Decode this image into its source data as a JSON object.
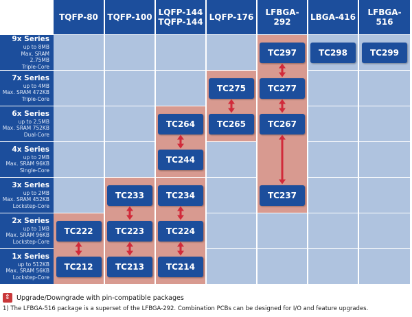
{
  "columns": [
    "TQFP-80",
    "TQFP-100",
    "LQFP-144\nTQFP-144",
    "LQFP-176",
    "LFBGA-292",
    "LBGA-416",
    "LFBGA-516"
  ],
  "rows": [
    {
      "name": "9x Series",
      "lines": [
        "up to 8MB",
        "Max. SRAM 2.75MB",
        "Triple-Core"
      ]
    },
    {
      "name": "7x Series",
      "lines": [
        "up to 4MB",
        "Max. SRAM 472KB",
        "Triple-Core"
      ]
    },
    {
      "name": "6x Series",
      "lines": [
        "up to 2.5MB",
        "Max. SRAM 752KB",
        "Dual-Core"
      ]
    },
    {
      "name": "4x Series",
      "lines": [
        "up to 2MB",
        "Max. SRAM 96KB",
        "Single-Core"
      ]
    },
    {
      "name": "3x Series",
      "lines": [
        "up to 2MB",
        "Max. SRAM 452KB",
        "Lockstep-Core"
      ]
    },
    {
      "name": "2x Series",
      "lines": [
        "up to 1MB",
        "Max. SRAM 96KB",
        "Lockstep-Core"
      ]
    },
    {
      "name": "1x Series",
      "lines": [
        "up to 512KB",
        "Max. SRAM 56KB",
        "Lockstep-Core"
      ]
    }
  ],
  "chips": [
    {
      "label": "TC297",
      "row": 0,
      "col": 4
    },
    {
      "label": "TC298",
      "row": 0,
      "col": 5
    },
    {
      "label": "TC299",
      "row": 0,
      "col": 6
    },
    {
      "label": "TC275",
      "row": 1,
      "col": 3
    },
    {
      "label": "TC277",
      "row": 1,
      "col": 4
    },
    {
      "label": "TC264",
      "row": 2,
      "col": 2
    },
    {
      "label": "TC265",
      "row": 2,
      "col": 3
    },
    {
      "label": "TC267",
      "row": 2,
      "col": 4
    },
    {
      "label": "TC244",
      "row": 3,
      "col": 2
    },
    {
      "label": "TC233",
      "row": 4,
      "col": 1
    },
    {
      "label": "TC234",
      "row": 4,
      "col": 2
    },
    {
      "label": "TC237",
      "row": 4,
      "col": 4
    },
    {
      "label": "TC222",
      "row": 5,
      "col": 0
    },
    {
      "label": "TC223",
      "row": 5,
      "col": 1
    },
    {
      "label": "TC224",
      "row": 5,
      "col": 2
    },
    {
      "label": "TC212",
      "row": 6,
      "col": 0
    },
    {
      "label": "TC213",
      "row": 6,
      "col": 1
    },
    {
      "label": "TC214",
      "row": 6,
      "col": 2
    }
  ],
  "upgrade_links": [
    {
      "from": "TC297",
      "to": "TC277"
    },
    {
      "from": "TC277",
      "to": "TC267"
    },
    {
      "from": "TC267",
      "to": "TC237"
    },
    {
      "from": "TC275",
      "to": "TC265"
    },
    {
      "from": "TC264",
      "to": "TC244"
    },
    {
      "from": "TC222",
      "to": "TC212"
    },
    {
      "from": "TC233",
      "to": "TC223"
    },
    {
      "from": "TC223",
      "to": "TC213"
    },
    {
      "from": "TC234",
      "to": "TC224"
    },
    {
      "from": "TC224",
      "to": "TC214"
    }
  ],
  "legend": {
    "label": "Upgrade/Downgrade with pin-compatible packages",
    "icon": "updown-arrow-icon"
  },
  "footnote": "1) The LFBGA-516 package is a superset of the LFBGA-292. Combination PCBs can be designed for I/O and feature upgrades.",
  "colors": {
    "header": "#1c4e9c",
    "cell": "#afc3df",
    "chip": "#1c4e9c",
    "highlight_light": "#f2d4c6",
    "highlight_dark": "#d89a90",
    "arrow": "#d12a3a"
  }
}
